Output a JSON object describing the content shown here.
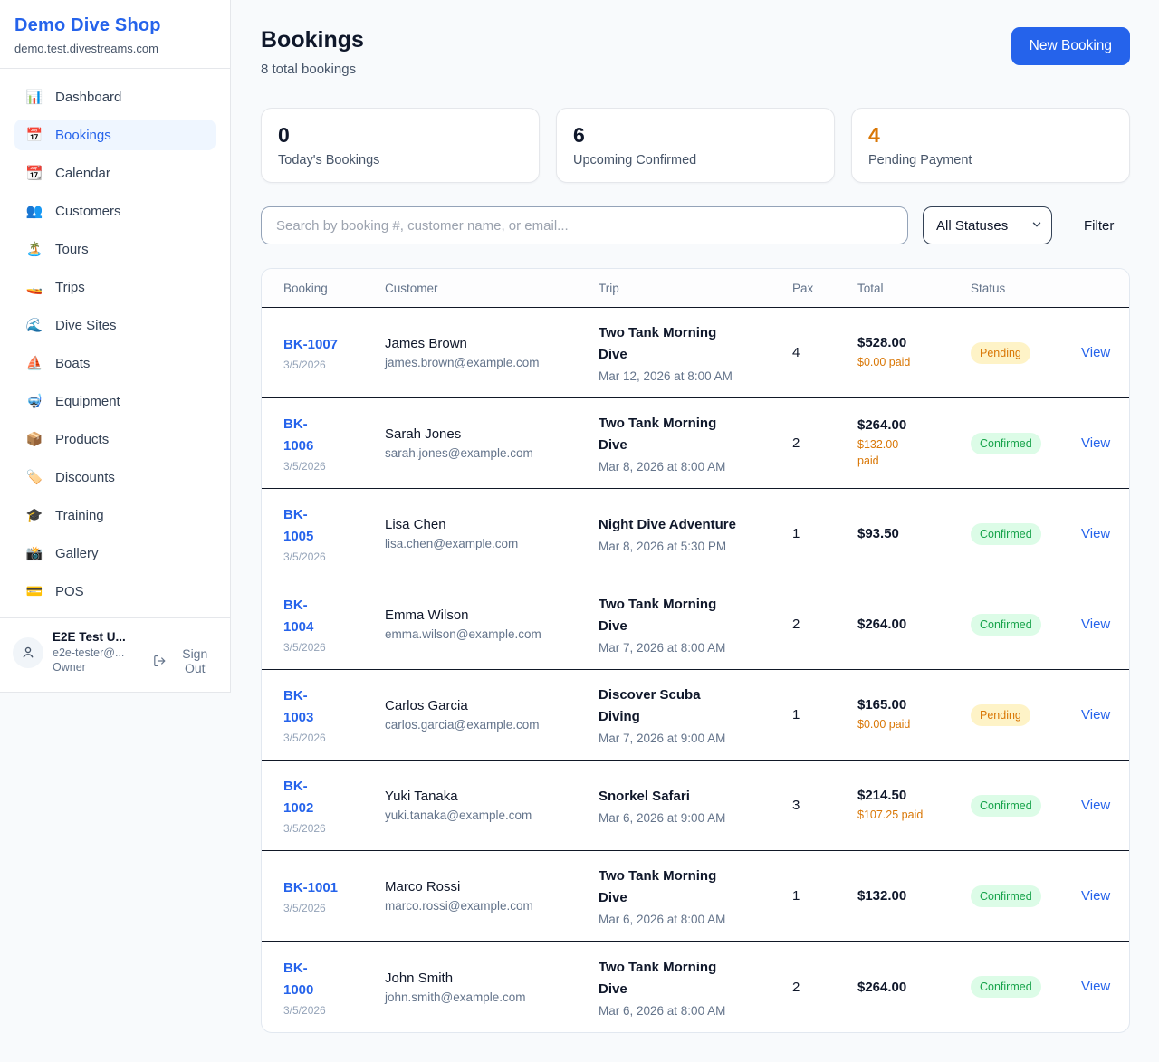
{
  "brand": {
    "name": "Demo Dive Shop",
    "domain": "demo.test.divestreams.com"
  },
  "colors": {
    "accent": "#2563EB",
    "pending_text": "#D97706",
    "pending_bg": "#FEF3C7",
    "confirmed_text": "#16A34A",
    "confirmed_bg": "#DCFCE7"
  },
  "sidebar": {
    "items": [
      {
        "label": "Dashboard",
        "glyph": "📊",
        "icon": "bar-chart-icon",
        "active": false
      },
      {
        "label": "Bookings",
        "glyph": "📅",
        "icon": "calendar-icon",
        "active": true
      },
      {
        "label": "Calendar",
        "glyph": "📆",
        "icon": "tear-off-calendar-icon",
        "active": false
      },
      {
        "label": "Customers",
        "glyph": "👥",
        "icon": "people-icon",
        "active": false
      },
      {
        "label": "Tours",
        "glyph": "🏝️",
        "icon": "island-icon",
        "active": false
      },
      {
        "label": "Trips",
        "glyph": "🚤",
        "icon": "speedboat-icon",
        "active": false
      },
      {
        "label": "Dive Sites",
        "glyph": "🌊",
        "icon": "wave-icon",
        "active": false
      },
      {
        "label": "Boats",
        "glyph": "⛵",
        "icon": "sailboat-icon",
        "active": false
      },
      {
        "label": "Equipment",
        "glyph": "🤿",
        "icon": "diving-mask-icon",
        "active": false
      },
      {
        "label": "Products",
        "glyph": "📦",
        "icon": "package-icon",
        "active": false
      },
      {
        "label": "Discounts",
        "glyph": "🏷️",
        "icon": "label-icon",
        "active": false
      },
      {
        "label": "Training",
        "glyph": "🎓",
        "icon": "graduation-cap-icon",
        "active": false
      },
      {
        "label": "Gallery",
        "glyph": "📸",
        "icon": "camera-flash-icon",
        "active": false
      },
      {
        "label": "POS",
        "glyph": "💳",
        "icon": "credit-card-icon",
        "active": false
      }
    ]
  },
  "user": {
    "name": "E2E Test U...",
    "email": "e2e-tester@...",
    "role": "Owner",
    "sign_out_label": "Sign Out"
  },
  "header": {
    "title": "Bookings",
    "subtitle": "8 total bookings",
    "new_booking_label": "New Booking"
  },
  "stats": [
    {
      "value": "0",
      "label": "Today's Bookings",
      "color": "dark"
    },
    {
      "value": "6",
      "label": "Upcoming Confirmed",
      "color": "dark"
    },
    {
      "value": "4",
      "label": "Pending Payment",
      "color": "orange"
    }
  ],
  "filters": {
    "search_placeholder": "Search by booking #, customer name, or email...",
    "status_selected": "All Statuses",
    "filter_label": "Filter"
  },
  "table": {
    "columns": [
      "Booking",
      "Customer",
      "Trip",
      "Pax",
      "Total",
      "Status"
    ],
    "view_label": "View",
    "rows": [
      {
        "id": "BK-1007",
        "date": "3/5/2026",
        "name": "James Brown",
        "email": "james.brown@example.com",
        "trip": "Two Tank Morning\nDive",
        "trip_time": "Mar 12, 2026 at 8:00 AM",
        "pax": "4",
        "total": "$528.00",
        "paid": "$0.00 paid",
        "status": "Pending",
        "status_type": "pending"
      },
      {
        "id": "BK-\n1006",
        "date": "3/5/2026",
        "name": "Sarah Jones",
        "email": "sarah.jones@example.com",
        "trip": "Two Tank Morning\nDive",
        "trip_time": "Mar 8, 2026 at 8:00 AM",
        "pax": "2",
        "total": "$264.00",
        "paid": "$132.00\npaid",
        "status": "Confirmed",
        "status_type": "confirmed"
      },
      {
        "id": "BK-\n1005",
        "date": "3/5/2026",
        "name": "Lisa Chen",
        "email": "lisa.chen@example.com",
        "trip": "Night Dive Adventure",
        "trip_time": "Mar 8, 2026 at 5:30 PM",
        "pax": "1",
        "total": "$93.50",
        "paid": "",
        "status": "Confirmed",
        "status_type": "confirmed"
      },
      {
        "id": "BK-\n1004",
        "date": "3/5/2026",
        "name": "Emma Wilson",
        "email": "emma.wilson@example.com",
        "trip": "Two Tank Morning\nDive",
        "trip_time": "Mar 7, 2026 at 8:00 AM",
        "pax": "2",
        "total": "$264.00",
        "paid": "",
        "status": "Confirmed",
        "status_type": "confirmed"
      },
      {
        "id": "BK-\n1003",
        "date": "3/5/2026",
        "name": "Carlos Garcia",
        "email": "carlos.garcia@example.com",
        "trip": "Discover Scuba\nDiving",
        "trip_time": "Mar 7, 2026 at 9:00 AM",
        "pax": "1",
        "total": "$165.00",
        "paid": "$0.00 paid",
        "status": "Pending",
        "status_type": "pending"
      },
      {
        "id": "BK-\n1002",
        "date": "3/5/2026",
        "name": "Yuki Tanaka",
        "email": "yuki.tanaka@example.com",
        "trip": "Snorkel Safari",
        "trip_time": "Mar 6, 2026 at 9:00 AM",
        "pax": "3",
        "total": "$214.50",
        "paid": "$107.25 paid",
        "status": "Confirmed",
        "status_type": "confirmed"
      },
      {
        "id": "BK-1001",
        "date": "3/5/2026",
        "name": "Marco Rossi",
        "email": "marco.rossi@example.com",
        "trip": "Two Tank Morning\nDive",
        "trip_time": "Mar 6, 2026 at 8:00 AM",
        "pax": "1",
        "total": "$132.00",
        "paid": "",
        "status": "Confirmed",
        "status_type": "confirmed"
      },
      {
        "id": "BK-\n1000",
        "date": "3/5/2026",
        "name": "John Smith",
        "email": "john.smith@example.com",
        "trip": "Two Tank Morning\nDive",
        "trip_time": "Mar 6, 2026 at 8:00 AM",
        "pax": "2",
        "total": "$264.00",
        "paid": "",
        "status": "Confirmed",
        "status_type": "confirmed"
      }
    ]
  }
}
